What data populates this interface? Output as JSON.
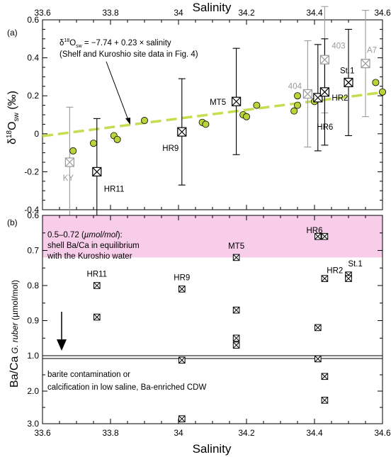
{
  "chart_data": [
    {
      "panel": "(a)",
      "type": "scatter",
      "xlabel": "Salinity",
      "ylabel_main": "δ",
      "ylabel_sup": "18",
      "ylabel_rest": "O",
      "ylabel_sub": "sw",
      "ylabel_unit": " (‰)",
      "xlim": [
        33.6,
        34.6
      ],
      "ylim": [
        -0.4,
        0.6
      ],
      "x_ticks": [
        "33.6",
        "33.8",
        "34",
        "34.2",
        "34.4",
        "34.6"
      ],
      "y_ticks": [
        "-0.4",
        "-0.2",
        "0",
        "0.2",
        "0.4",
        "0.6"
      ],
      "tick_values_x": [
        33.6,
        33.8,
        34.0,
        34.2,
        34.4,
        34.6
      ],
      "tick_values_y": [
        -0.4,
        -0.2,
        0,
        0.2,
        0.4,
        0.6
      ],
      "regression": {
        "eq_prefix": "δ",
        "eq_sup": "18",
        "eq_mid": "O",
        "eq_sub": "sw",
        "eq_rest": " = −7.74 + 0.23 × salinity",
        "note": "(Shelf and Kuroshio site data in Fig. 4)",
        "intercept": -7.74,
        "slope": 0.23,
        "x_range": [
          33.6,
          34.6
        ],
        "color": "#c8dc50"
      },
      "circles_color": "#b8d438",
      "circles": [
        {
          "x": 33.69,
          "y": -0.09
        },
        {
          "x": 33.75,
          "y": -0.05
        },
        {
          "x": 33.81,
          "y": -0.01
        },
        {
          "x": 33.82,
          "y": -0.03
        },
        {
          "x": 33.9,
          "y": 0.07
        },
        {
          "x": 34.07,
          "y": 0.06
        },
        {
          "x": 34.08,
          "y": 0.05
        },
        {
          "x": 34.19,
          "y": 0.1
        },
        {
          "x": 34.2,
          "y": 0.09
        },
        {
          "x": 34.23,
          "y": 0.15
        },
        {
          "x": 34.34,
          "y": 0.12
        },
        {
          "x": 34.35,
          "y": 0.15
        },
        {
          "x": 34.35,
          "y": 0.2
        },
        {
          "x": 34.4,
          "y": 0.17
        },
        {
          "x": 34.58,
          "y": 0.27
        },
        {
          "x": 34.6,
          "y": 0.22
        }
      ],
      "stations": [
        {
          "label": "KY",
          "x": 33.68,
          "y": -0.15,
          "err": 0.29,
          "gray": true
        },
        {
          "label": "HR11",
          "x": 33.76,
          "y": -0.2,
          "err": 0.28,
          "gray": false
        },
        {
          "label": "HR9",
          "x": 34.01,
          "y": 0.01,
          "err": 0.28,
          "gray": false
        },
        {
          "label": "MT5",
          "x": 34.17,
          "y": 0.17,
          "err": 0.28,
          "gray": false
        },
        {
          "label": "404",
          "x": 34.38,
          "y": 0.21,
          "err": 0.28,
          "gray": true
        },
        {
          "label": "HR6",
          "x": 34.41,
          "y": 0.19,
          "err": 0.28,
          "gray": false
        },
        {
          "label": "403",
          "x": 34.43,
          "y": 0.39,
          "err": 0.28,
          "gray": true
        },
        {
          "label": "HR2",
          "x": 34.43,
          "y": 0.22,
          "err": 0.28,
          "gray": false
        },
        {
          "label": "St.1",
          "x": 34.5,
          "y": 0.27,
          "err": 0.28,
          "gray": false
        },
        {
          "label": "A7",
          "x": 34.55,
          "y": 0.37,
          "err": 0.28,
          "gray": true
        }
      ]
    },
    {
      "panel": "(b)",
      "type": "scatter",
      "xlabel": "Salinity",
      "ylabel_main": "Ba/Ca",
      "ylabel_species": "G. ruber",
      "ylabel_unit": " (µmol/mol)",
      "xlim": [
        33.6,
        34.6
      ],
      "upper_ylim": [
        0.6,
        1.0
      ],
      "lower_ylim": [
        1.0,
        3.0
      ],
      "x_ticks": [
        "33.6",
        "33.8",
        "34",
        "34.2",
        "34.4",
        "34.6"
      ],
      "upper_y_ticks": [
        "0.6",
        "0.7",
        "0.8",
        "0.9",
        "1.0"
      ],
      "lower_y_ticks": [
        "2.0",
        "3.0"
      ],
      "band": {
        "range": [
          0.5,
          0.72
        ],
        "line1_pre": "0.5–0.72 (",
        "line1_unit": "µmol/mol",
        "line1_post": "):",
        "line2": "shell Ba/Ca in equilibrium",
        "line3": "with the Kuroshio water",
        "color": "#f7cde9"
      },
      "lower_note_1": "barite contamination or",
      "lower_note_2": "calcification in low saline, Ba-enriched CDW",
      "station_labels": [
        {
          "label": "HR11",
          "x": 33.76
        },
        {
          "label": "HR9",
          "x": 34.01
        },
        {
          "label": "MT5",
          "x": 34.17
        },
        {
          "label": "HR6",
          "x": 34.4
        },
        {
          "label": "HR2",
          "x": 34.46
        },
        {
          "label": "St.1",
          "x": 34.52
        }
      ],
      "points": [
        {
          "x": 33.76,
          "y": 0.8
        },
        {
          "x": 33.76,
          "y": 0.89
        },
        {
          "x": 34.01,
          "y": 0.81
        },
        {
          "x": 34.01,
          "y": 1.05
        },
        {
          "x": 34.01,
          "y": 2.85
        },
        {
          "x": 34.17,
          "y": 0.72
        },
        {
          "x": 34.17,
          "y": 0.87
        },
        {
          "x": 34.17,
          "y": 0.95
        },
        {
          "x": 34.17,
          "y": 0.97
        },
        {
          "x": 34.41,
          "y": 0.66
        },
        {
          "x": 34.41,
          "y": 0.92
        },
        {
          "x": 34.41,
          "y": 1.01
        },
        {
          "x": 34.43,
          "y": 0.66
        },
        {
          "x": 34.43,
          "y": 0.78
        },
        {
          "x": 34.43,
          "y": 1.55
        },
        {
          "x": 34.43,
          "y": 2.28
        },
        {
          "x": 34.5,
          "y": 0.77
        },
        {
          "x": 34.5,
          "y": 0.78
        }
      ]
    }
  ]
}
